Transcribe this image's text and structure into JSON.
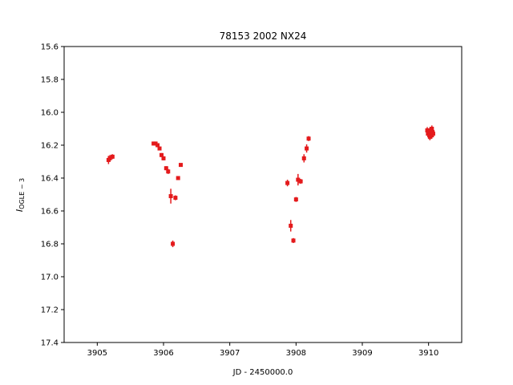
{
  "chart_data": {
    "type": "scatter",
    "title": "78153 2002 NX24",
    "xlabel": "JD - 2450000.0",
    "ylabel_main": "I",
    "ylabel_sub": "OGLE − 3",
    "xlim": [
      3904.5,
      3910.5
    ],
    "ylim": [
      15.6,
      17.4
    ],
    "y_inverted": true,
    "grid": false,
    "xticks": [
      "3905",
      "3906",
      "3907",
      "3908",
      "3909",
      "3910"
    ],
    "yticks": [
      "15.6",
      "15.8",
      "16.0",
      "16.2",
      "16.4",
      "16.6",
      "16.8",
      "17.0",
      "17.2",
      "17.4"
    ],
    "xtick_values": [
      3905,
      3906,
      3907,
      3908,
      3909,
      3910
    ],
    "ytick_values": [
      15.6,
      15.8,
      16.0,
      16.2,
      16.4,
      16.6,
      16.8,
      17.0,
      17.2,
      17.4
    ],
    "marker_color": "#e41a1c",
    "points": [
      {
        "x": 3905.17,
        "y": 16.29,
        "err": 0.025
      },
      {
        "x": 3905.19,
        "y": 16.28,
        "err": 0.02
      },
      {
        "x": 3905.23,
        "y": 16.27,
        "err": 0.015
      },
      {
        "x": 3905.85,
        "y": 16.19,
        "err": 0.01
      },
      {
        "x": 3905.88,
        "y": 16.19,
        "err": 0.01
      },
      {
        "x": 3905.91,
        "y": 16.2,
        "err": 0.01
      },
      {
        "x": 3905.94,
        "y": 16.22,
        "err": 0.01
      },
      {
        "x": 3905.97,
        "y": 16.26,
        "err": 0.012
      },
      {
        "x": 3906.0,
        "y": 16.28,
        "err": 0.012
      },
      {
        "x": 3906.04,
        "y": 16.34,
        "err": 0.012
      },
      {
        "x": 3906.07,
        "y": 16.36,
        "err": 0.015
      },
      {
        "x": 3906.11,
        "y": 16.51,
        "err": 0.045
      },
      {
        "x": 3906.14,
        "y": 16.8,
        "err": 0.02
      },
      {
        "x": 3906.18,
        "y": 16.52,
        "err": 0.015
      },
      {
        "x": 3906.22,
        "y": 16.4,
        "err": 0.012
      },
      {
        "x": 3906.26,
        "y": 16.32,
        "err": 0.01
      },
      {
        "x": 3907.87,
        "y": 16.43,
        "err": 0.02
      },
      {
        "x": 3907.92,
        "y": 16.69,
        "err": 0.035
      },
      {
        "x": 3907.96,
        "y": 16.78,
        "err": 0.015
      },
      {
        "x": 3908.0,
        "y": 16.53,
        "err": 0.015
      },
      {
        "x": 3908.03,
        "y": 16.41,
        "err": 0.035
      },
      {
        "x": 3908.07,
        "y": 16.42,
        "err": 0.015
      },
      {
        "x": 3908.12,
        "y": 16.28,
        "err": 0.025
      },
      {
        "x": 3908.16,
        "y": 16.22,
        "err": 0.025
      },
      {
        "x": 3908.19,
        "y": 16.16,
        "err": 0.015
      },
      {
        "x": 3909.98,
        "y": 16.11,
        "err": 0.02
      },
      {
        "x": 3909.99,
        "y": 16.13,
        "err": 0.02
      },
      {
        "x": 3910.0,
        "y": 16.12,
        "err": 0.02
      },
      {
        "x": 3910.01,
        "y": 16.14,
        "err": 0.02
      },
      {
        "x": 3910.02,
        "y": 16.11,
        "err": 0.02
      },
      {
        "x": 3910.03,
        "y": 16.13,
        "err": 0.02
      },
      {
        "x": 3910.04,
        "y": 16.12,
        "err": 0.02
      },
      {
        "x": 3910.05,
        "y": 16.14,
        "err": 0.02
      },
      {
        "x": 3910.06,
        "y": 16.12,
        "err": 0.02
      },
      {
        "x": 3910.07,
        "y": 16.13,
        "err": 0.02
      },
      {
        "x": 3910.02,
        "y": 16.15,
        "err": 0.02
      },
      {
        "x": 3910.05,
        "y": 16.1,
        "err": 0.02
      }
    ]
  }
}
